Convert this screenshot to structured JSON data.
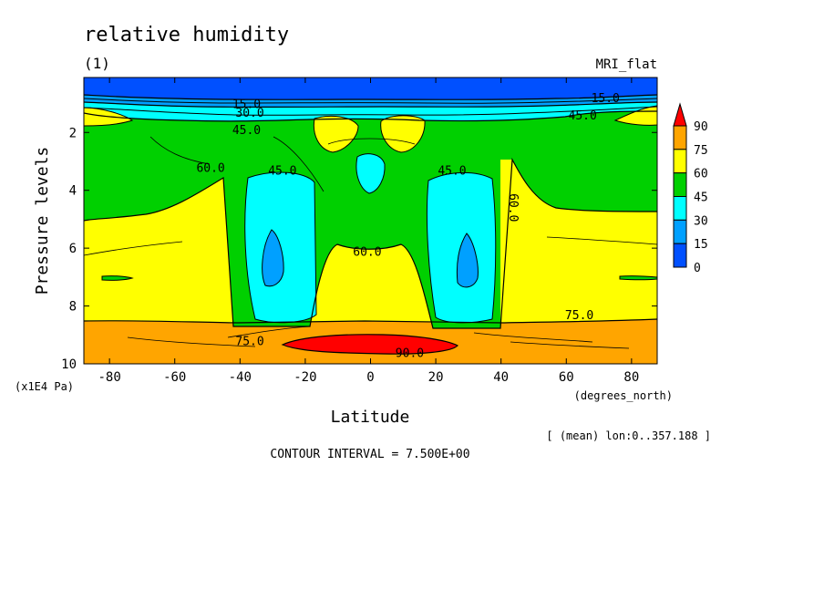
{
  "chart_data": {
    "type": "heatmap",
    "title": "relative humidity",
    "panel_label": "(1)",
    "model_label": "MRI_flat",
    "xlabel": "Latitude",
    "x_units": "(degrees_north)",
    "ylabel": "Pressure levels",
    "y_units": "(x1E4 Pa)",
    "xlim": [
      -87.86,
      87.86
    ],
    "ylim": [
      10,
      0.1
    ],
    "x_ticks": [
      -80,
      -60,
      -40,
      -20,
      0,
      20,
      40,
      60,
      80
    ],
    "x_tick_labels": [
      "-80",
      "-60",
      "-40",
      "-20",
      "0",
      "20",
      "40",
      "60",
      "80"
    ],
    "y_ticks": [
      2,
      4,
      6,
      8,
      10
    ],
    "y_tick_labels": [
      "2",
      "4",
      "6",
      "8",
      "10"
    ],
    "mean_note": "[ (mean) lon:0..357.188 ]",
    "contour_interval_text": "CONTOUR INTERVAL = 7.500E+00",
    "levels": [
      0,
      15,
      30,
      45,
      60,
      75,
      90
    ],
    "colorbar": {
      "labels": [
        "90",
        "75",
        "60",
        "45",
        "30",
        "15",
        "0"
      ],
      "colors": [
        "#ff0000",
        "#ffa500",
        "#ffff00",
        "#00d000",
        "#00ffff",
        "#00a0ff",
        "#0050ff"
      ]
    },
    "contour_labels": [
      {
        "text": "15.0",
        "lon": -38,
        "p": 1.0
      },
      {
        "text": "30.0",
        "lon": -37,
        "p": 1.3
      },
      {
        "text": "45.0",
        "lon": -38,
        "p": 1.9
      },
      {
        "text": "15.0",
        "lon": 72,
        "p": 0.8
      },
      {
        "text": "45.0",
        "lon": 65,
        "p": 1.4
      },
      {
        "text": "60.0",
        "lon": -49,
        "p": 3.2
      },
      {
        "text": "45.0",
        "lon": -27,
        "p": 3.3
      },
      {
        "text": "45.0",
        "lon": 25,
        "p": 3.3
      },
      {
        "text": "60.0",
        "lon": 44,
        "p": 4.6,
        "vertical": true
      },
      {
        "text": "60.0",
        "lon": -1,
        "p": 6.1
      },
      {
        "text": "75.0",
        "lon": 64,
        "p": 8.3
      },
      {
        "text": "75.0",
        "lon": -37,
        "p": 9.2
      },
      {
        "text": "90.0",
        "lon": 12,
        "p": 9.6
      }
    ]
  }
}
